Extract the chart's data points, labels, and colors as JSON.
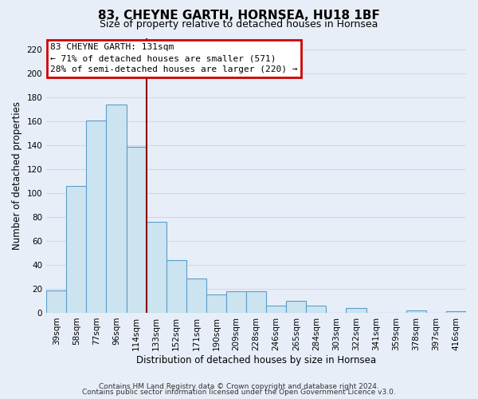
{
  "title": "83, CHEYNE GARTH, HORNSEA, HU18 1BF",
  "subtitle": "Size of property relative to detached houses in Hornsea",
  "xlabel": "Distribution of detached houses by size in Hornsea",
  "ylabel": "Number of detached properties",
  "categories": [
    "39sqm",
    "58sqm",
    "77sqm",
    "96sqm",
    "114sqm",
    "133sqm",
    "152sqm",
    "171sqm",
    "190sqm",
    "209sqm",
    "228sqm",
    "246sqm",
    "265sqm",
    "284sqm",
    "303sqm",
    "322sqm",
    "341sqm",
    "359sqm",
    "378sqm",
    "397sqm",
    "416sqm"
  ],
  "values": [
    19,
    106,
    161,
    174,
    139,
    76,
    44,
    29,
    15,
    18,
    18,
    6,
    10,
    6,
    0,
    4,
    0,
    0,
    2,
    0,
    1
  ],
  "bar_color": "#cce4f0",
  "bar_edge_color": "#5b9dc9",
  "vline_x_index": 4.5,
  "ylim": [
    0,
    230
  ],
  "yticks": [
    0,
    20,
    40,
    60,
    80,
    100,
    120,
    140,
    160,
    180,
    200,
    220
  ],
  "annotation_title": "83 CHEYNE GARTH: 131sqm",
  "annotation_line1": "← 71% of detached houses are smaller (571)",
  "annotation_line2": "28% of semi-detached houses are larger (220) →",
  "annotation_box_color": "#ffffff",
  "annotation_box_edge": "#cc0000",
  "vline_color": "#8b0000",
  "footer1": "Contains HM Land Registry data © Crown copyright and database right 2024.",
  "footer2": "Contains public sector information licensed under the Open Government Licence v3.0.",
  "background_color": "#e8eef8",
  "grid_color": "#d0d8e8",
  "title_fontsize": 11,
  "subtitle_fontsize": 9,
  "axis_label_fontsize": 8.5,
  "tick_fontsize": 7.5,
  "annotation_fontsize": 8,
  "footer_fontsize": 6.5
}
